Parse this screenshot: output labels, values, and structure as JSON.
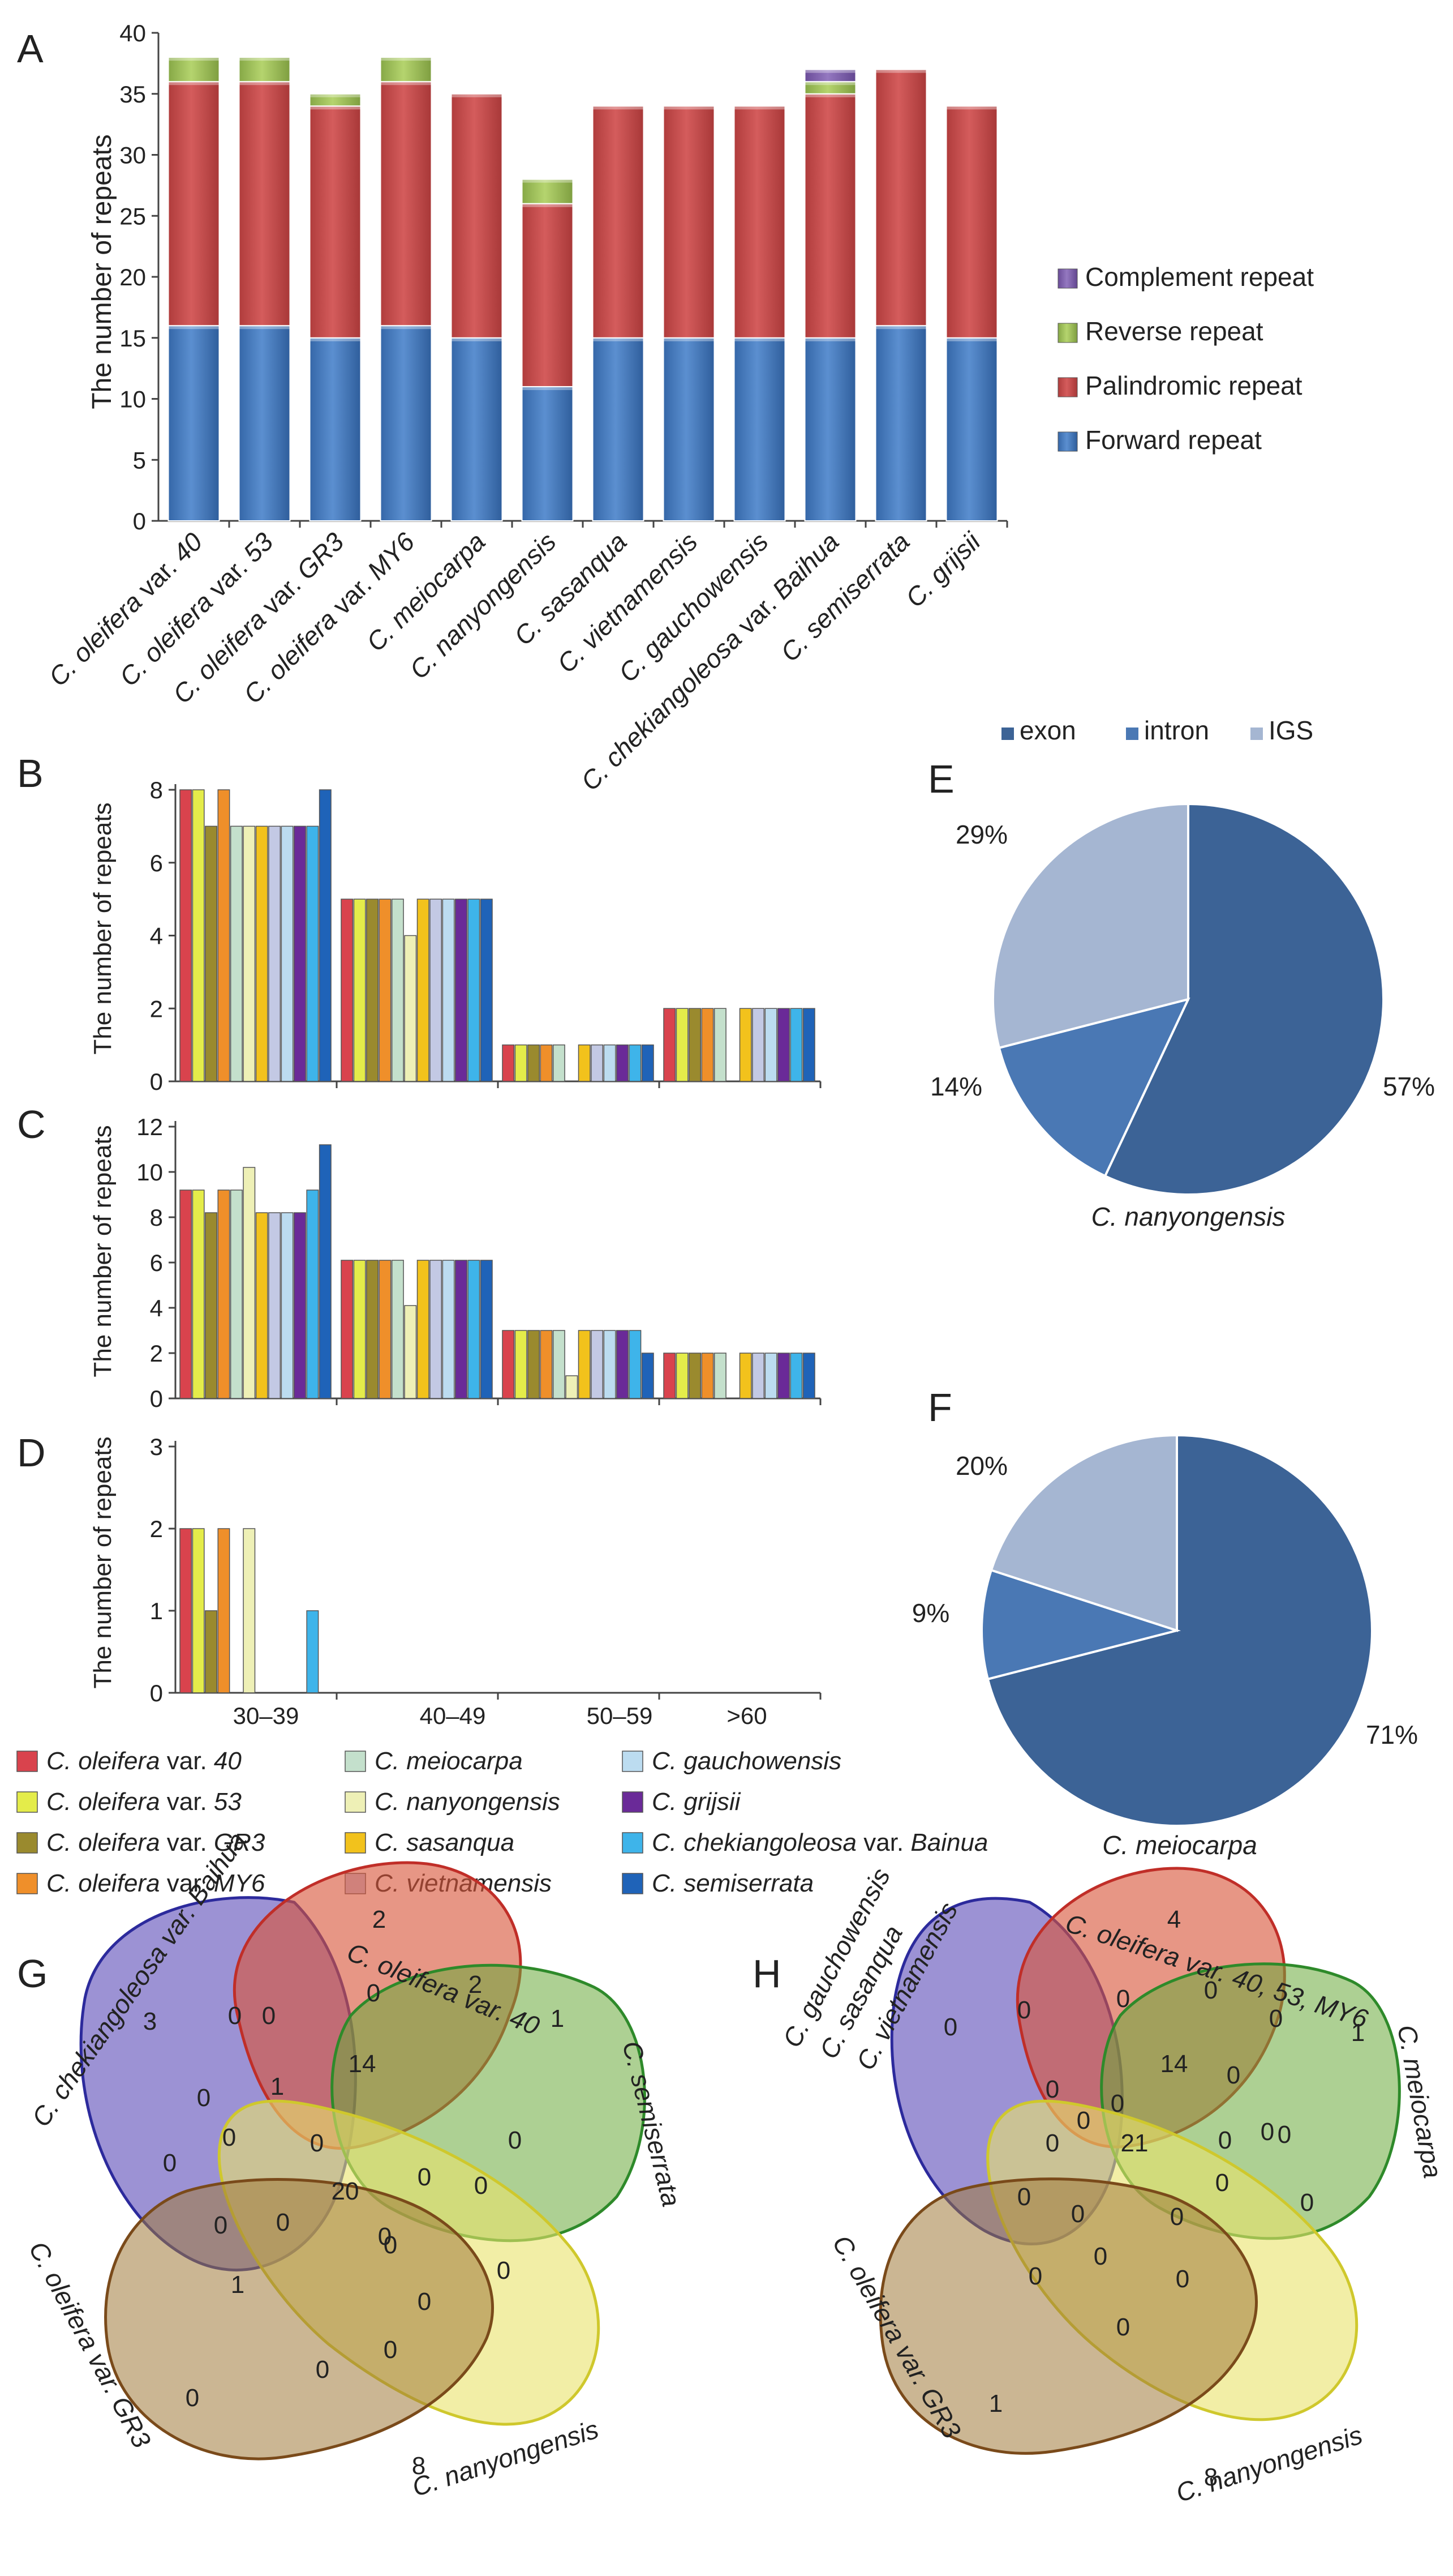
{
  "species_labels": [
    "C. oleifera var. 40",
    "C. oleifera var. 53",
    "C. oleifera var. GR3",
    "C. oleifera var. MY6",
    "C. meiocarpa",
    "C. nanyongensis",
    "C. sasanqua",
    "C. vietnamensis",
    "C. gauchowensis",
    "C. chekiangoleosa var. Baihua",
    "C. semiserrata",
    "C. grijsii"
  ],
  "panels": {
    "A": "A",
    "B": "B",
    "C": "C",
    "D": "D",
    "E": "E",
    "F": "F",
    "G": "G",
    "H": "H"
  },
  "legend_bottom": [
    {
      "label": "C. oleifera var. 40",
      "color": "#d9434d"
    },
    {
      "label": "C. oleifera var. 53",
      "color": "#e4ec4a"
    },
    {
      "label": "C. oleifera var. GR3",
      "color": "#9a8a2e"
    },
    {
      "label": "C. oleifera var. MY6",
      "color": "#ef8f2a"
    },
    {
      "label": "C. meiocarpa",
      "color": "#c4e0cc"
    },
    {
      "label": "C. nanyongensis",
      "color": "#eef0b6"
    },
    {
      "label": "C. sasanqua",
      "color": "#f2c21c"
    },
    {
      "label": "C. vietnamensis",
      "color": "#c3c9e4"
    },
    {
      "label": "C. gauchowensis",
      "color": "#bcdcf0"
    },
    {
      "label": "C. grijsii",
      "color": "#6a2a98"
    },
    {
      "label": "C. chekiangoleosa var. Bainua",
      "color": "#3eb4ea"
    },
    {
      "label": "C. semiserrata",
      "color": "#1f63b8"
    }
  ],
  "chart_data": [
    {
      "id": "A",
      "type": "bar",
      "stacked": true,
      "ylabel": "The number of repeats",
      "ylim": [
        0,
        40
      ],
      "yticks": [
        0,
        5,
        10,
        15,
        20,
        25,
        30,
        35,
        40
      ],
      "categories": [
        "C. oleifera var. 40",
        "C. oleifera var. 53",
        "C. oleifera var. GR3",
        "C. oleifera var. MY6",
        "C. meiocarpa",
        "C. nanyongensis",
        "C. sasanqua",
        "C. vietnamensis",
        "C. gauchowensis",
        "C. chekiangoleosa var. Baihua",
        "C. semiserrata",
        "C. grijsii"
      ],
      "series": [
        {
          "name": "Forward repeat",
          "color": "#4a80c4",
          "values": [
            16,
            16,
            15,
            16,
            15,
            11,
            15,
            15,
            15,
            15,
            16,
            15
          ]
        },
        {
          "name": "Palindromic repeat",
          "color": "#c74a4a",
          "values": [
            20,
            20,
            19,
            20,
            20,
            15,
            19,
            19,
            19,
            20,
            21,
            19
          ]
        },
        {
          "name": "Reverse repeat",
          "color": "#9bbb59",
          "values": [
            2,
            2,
            1,
            2,
            0,
            2,
            0,
            0,
            0,
            1,
            0,
            0
          ]
        },
        {
          "name": "Complement repeat",
          "color": "#7a5ca8",
          "values": [
            0,
            0,
            0,
            0,
            0,
            0,
            0,
            0,
            0,
            1,
            0,
            0
          ]
        }
      ],
      "legend_order": [
        "Complement repeat",
        "Reverse repeat",
        "Palindromic repeat",
        "Forward repeat"
      ]
    },
    {
      "id": "B",
      "type": "bar",
      "ylabel": "The number of repeats",
      "ylim": [
        0,
        8
      ],
      "yticks": [
        0,
        2,
        4,
        6,
        8
      ],
      "categories": [
        "30–39",
        "40–49",
        "50–59",
        ">60"
      ],
      "series": [
        {
          "name": "C. oleifera var. 40",
          "values": [
            8,
            5,
            1,
            2
          ]
        },
        {
          "name": "C. oleifera var. 53",
          "values": [
            8,
            5,
            1,
            2
          ]
        },
        {
          "name": "C. oleifera var. GR3",
          "values": [
            7,
            5,
            1,
            2
          ]
        },
        {
          "name": "C. oleifera var. MY6",
          "values": [
            8,
            5,
            1,
            2
          ]
        },
        {
          "name": "C. meiocarpa",
          "values": [
            7,
            5,
            1,
            2
          ]
        },
        {
          "name": "C. nanyongensis",
          "values": [
            7,
            4,
            0,
            0
          ]
        },
        {
          "name": "C. sasanqua",
          "values": [
            7,
            5,
            1,
            2
          ]
        },
        {
          "name": "C. vietnamensis",
          "values": [
            7,
            5,
            1,
            2
          ]
        },
        {
          "name": "C. gauchowensis",
          "values": [
            7,
            5,
            1,
            2
          ]
        },
        {
          "name": "C. grijsii",
          "values": [
            7,
            5,
            1,
            2
          ]
        },
        {
          "name": "C. chekiangoleosa var. Bainua",
          "values": [
            7,
            5,
            1,
            2
          ]
        },
        {
          "name": "C. semiserrata",
          "values": [
            8,
            5,
            1,
            2
          ]
        }
      ]
    },
    {
      "id": "C",
      "type": "bar",
      "ylabel": "The number of repeats",
      "ylim": [
        0,
        12
      ],
      "yticks": [
        0,
        2,
        4,
        6,
        8,
        10,
        12
      ],
      "categories": [
        "30–39",
        "40–49",
        "50–59",
        ">60"
      ],
      "series": [
        {
          "name": "C. oleifera var. 40",
          "values": [
            9.2,
            6.1,
            3,
            2
          ]
        },
        {
          "name": "C. oleifera var. 53",
          "values": [
            9.2,
            6.1,
            3,
            2
          ]
        },
        {
          "name": "C. oleifera var. GR3",
          "values": [
            8.2,
            6.1,
            3,
            2
          ]
        },
        {
          "name": "C. oleifera var. MY6",
          "values": [
            9.2,
            6.1,
            3,
            2
          ]
        },
        {
          "name": "C. meiocarpa",
          "values": [
            9.2,
            6.1,
            3,
            2
          ]
        },
        {
          "name": "C. nanyongensis",
          "values": [
            10.2,
            4.1,
            1,
            0
          ]
        },
        {
          "name": "C. sasanqua",
          "values": [
            8.2,
            6.1,
            3,
            2
          ]
        },
        {
          "name": "C. vietnamensis",
          "values": [
            8.2,
            6.1,
            3,
            2
          ]
        },
        {
          "name": "C. gauchowensis",
          "values": [
            8.2,
            6.1,
            3,
            2
          ]
        },
        {
          "name": "C. grijsii",
          "values": [
            8.2,
            6.1,
            3,
            2
          ]
        },
        {
          "name": "C. chekiangoleosa var. Bainua",
          "values": [
            9.2,
            6.1,
            3,
            2
          ]
        },
        {
          "name": "C. semiserrata",
          "values": [
            11.2,
            6.1,
            2,
            2
          ]
        }
      ]
    },
    {
      "id": "D",
      "type": "bar",
      "ylabel": "The number of repeats",
      "ylim": [
        0,
        3
      ],
      "yticks": [
        0,
        1,
        2,
        3
      ],
      "categories": [
        "30–39",
        "40–49",
        "50–59",
        ">60"
      ],
      "series": [
        {
          "name": "C. oleifera var. 40",
          "values": [
            2,
            0,
            0,
            0
          ]
        },
        {
          "name": "C. oleifera var. 53",
          "values": [
            2,
            0,
            0,
            0
          ]
        },
        {
          "name": "C. oleifera var. GR3",
          "values": [
            1,
            0,
            0,
            0
          ]
        },
        {
          "name": "C. oleifera var. MY6",
          "values": [
            2,
            0,
            0,
            0
          ]
        },
        {
          "name": "C. meiocarpa",
          "values": [
            0,
            0,
            0,
            0
          ]
        },
        {
          "name": "C. nanyongensis",
          "values": [
            2,
            0,
            0,
            0
          ]
        },
        {
          "name": "C. sasanqua",
          "values": [
            0,
            0,
            0,
            0
          ]
        },
        {
          "name": "C. vietnamensis",
          "values": [
            0,
            0,
            0,
            0
          ]
        },
        {
          "name": "C. gauchowensis",
          "values": [
            0,
            0,
            0,
            0
          ]
        },
        {
          "name": "C. grijsii",
          "values": [
            0,
            0,
            0,
            0
          ]
        },
        {
          "name": "C. chekiangoleosa var. Bainua",
          "values": [
            1,
            0,
            0,
            0
          ]
        },
        {
          "name": "C. semiserrata",
          "values": [
            0,
            0,
            0,
            0
          ]
        }
      ]
    },
    {
      "id": "E",
      "type": "pie",
      "title": "C. nanyongensis",
      "slices": [
        {
          "label": "exon",
          "value": 57,
          "text": "57%",
          "color": "#3c6396"
        },
        {
          "label": "intron",
          "value": 14,
          "text": "14%",
          "color": "#4a78b4"
        },
        {
          "label": "IGS",
          "value": 29,
          "text": "29%",
          "color": "#a5b6d2"
        }
      ],
      "legend": [
        "exon",
        "intron",
        "IGS"
      ]
    },
    {
      "id": "F",
      "type": "pie",
      "title": "C. meiocarpa",
      "slices": [
        {
          "label": "exon",
          "value": 71,
          "text": "71%",
          "color": "#3c6396"
        },
        {
          "label": "intron",
          "value": 9,
          "text": "9%",
          "color": "#4a78b4"
        },
        {
          "label": "IGS",
          "value": 20,
          "text": "20%",
          "color": "#a5b6d2"
        }
      ]
    },
    {
      "id": "G",
      "type": "venn",
      "sets": [
        "C. chekiangoleosa var. Baihua",
        "C. oleifera var. 40",
        "C. semiserrata",
        "C. nanyongensis",
        "C. oleifera var. GR3"
      ],
      "numbers": [
        "3",
        "2",
        "1",
        "8",
        "0",
        "0",
        "0",
        "2",
        "0",
        "0",
        "0",
        "0",
        "0",
        "0",
        "0",
        "0",
        "0",
        "0",
        "0",
        "0",
        "0",
        "0",
        "0",
        "1",
        "1",
        "14",
        "20",
        "0"
      ]
    },
    {
      "id": "H",
      "type": "venn",
      "sets": [
        "C. gauchowensis",
        "C. sasanqua",
        "C. vietnamensis",
        "C. oleifera var. 40, 53, MY6",
        "C. meiocarpa",
        "C. nanyongensis",
        "C. oleifera var. GR3"
      ],
      "numbers": [
        "0",
        "4",
        "1",
        "8",
        "1",
        "0",
        "0",
        "0",
        "0",
        "0",
        "0",
        "0",
        "0",
        "0",
        "0",
        "0",
        "0",
        "0",
        "0",
        "0",
        "0",
        "0",
        "0",
        "0",
        "0",
        "0",
        "14",
        "21"
      ]
    }
  ]
}
